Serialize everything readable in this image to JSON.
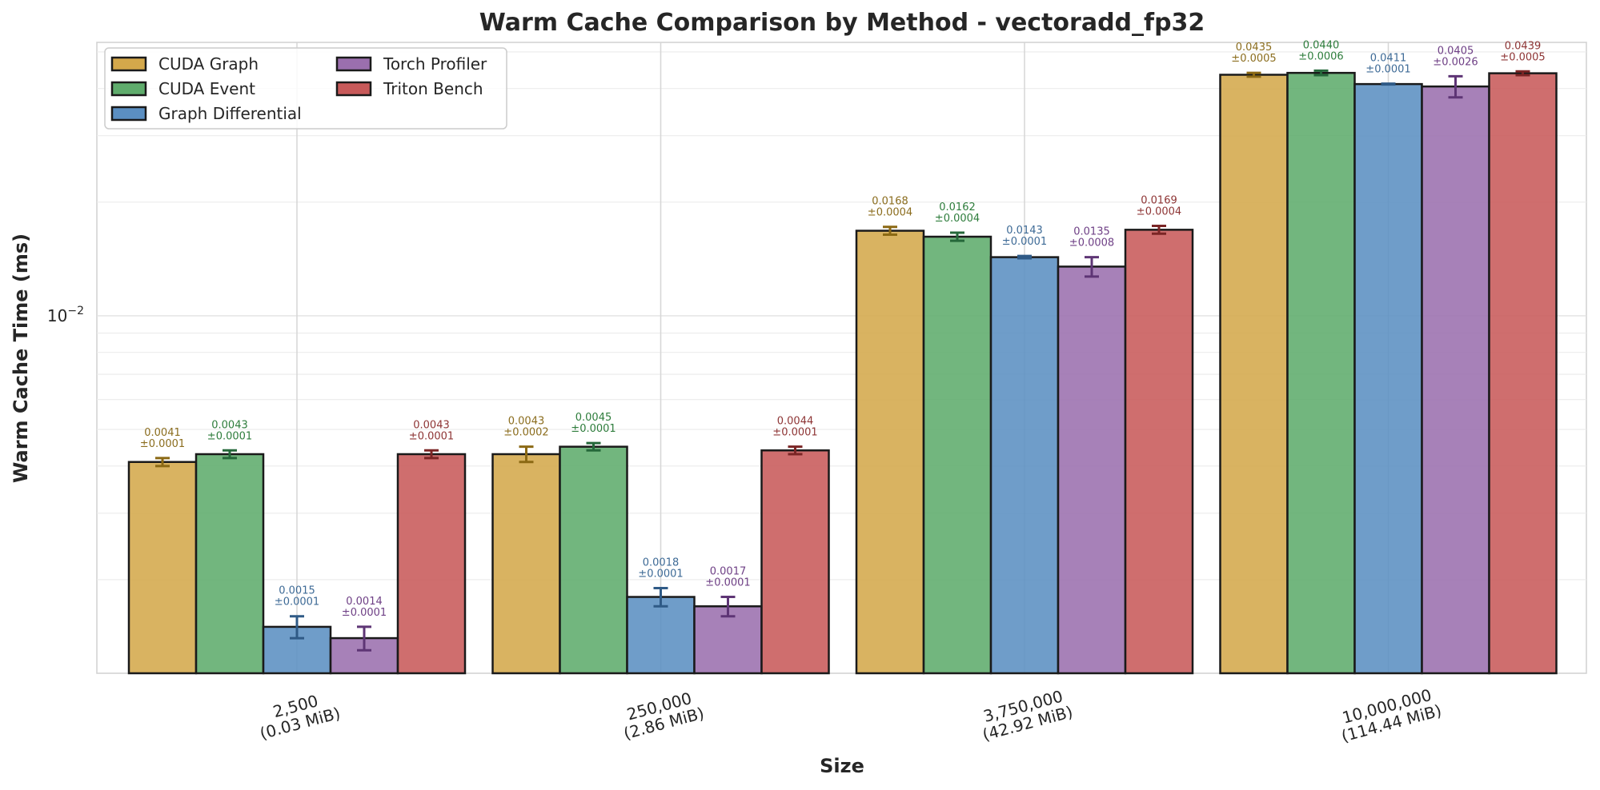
{
  "chart_data": {
    "type": "bar",
    "title": "Warm Cache Comparison by Method - vectoradd_fp32",
    "xlabel": "Size",
    "ylabel": "Warm Cache Time (ms)",
    "yscale": "log",
    "ylim": [
      0.00113,
      0.053
    ],
    "y_major_ticks": [
      {
        "value": 0.01,
        "label_base": "10",
        "label_exp": "−2"
      }
    ],
    "y_minor_gridlines": [
      0.002,
      0.003,
      0.004,
      0.005,
      0.006,
      0.007,
      0.008,
      0.009,
      0.02,
      0.03,
      0.04,
      0.05
    ],
    "grid": true,
    "legend_position": "top-left",
    "categories": [
      {
        "line1": "2,500",
        "line2": "(0.03 MiB)"
      },
      {
        "line1": "250,000",
        "line2": "(2.86 MiB)"
      },
      {
        "line1": "3,750,000",
        "line2": "(42.92 MiB)"
      },
      {
        "line1": "10,000,000",
        "line2": "(114.44 MiB)"
      }
    ],
    "series": [
      {
        "name": "CUDA Graph",
        "color": "#d4a84b",
        "label_color": "#8b6d1e",
        "err_color": "#8b6914",
        "values": [
          0.0041,
          0.0043,
          0.0168,
          0.0435
        ],
        "errors": [
          0.0001,
          0.0002,
          0.0004,
          0.0005
        ],
        "value_labels": [
          "0.0041",
          "0.0043",
          "0.0168",
          "0.0435"
        ],
        "error_labels": [
          "±0.0001",
          "±0.0002",
          "±0.0004",
          "±0.0005"
        ]
      },
      {
        "name": "CUDA Event",
        "color": "#5fac6c",
        "label_color": "#2e7d3c",
        "err_color": "#25683a",
        "values": [
          0.0043,
          0.0045,
          0.0162,
          0.044
        ],
        "errors": [
          0.0001,
          0.0001,
          0.0004,
          0.0006
        ],
        "value_labels": [
          "0.0043",
          "0.0045",
          "0.0162",
          "0.0440"
        ],
        "error_labels": [
          "±0.0001",
          "±0.0001",
          "±0.0004",
          "±0.0006"
        ]
      },
      {
        "name": "Graph Differential",
        "color": "#5b8fc2",
        "label_color": "#3d6a96",
        "err_color": "#2f5a86",
        "values": [
          0.0015,
          0.0018,
          0.0143,
          0.0411
        ],
        "errors": [
          0.0001,
          0.0001,
          0.0001,
          0.0001
        ],
        "value_labels": [
          "0.0015",
          "0.0018",
          "0.0143",
          "0.0411"
        ],
        "error_labels": [
          "±0.0001",
          "±0.0001",
          "±0.0001",
          "±0.0001"
        ]
      },
      {
        "name": "Torch Profiler",
        "color": "#9b6fae",
        "label_color": "#6e3f85",
        "err_color": "#5e3575",
        "values": [
          0.0014,
          0.0017,
          0.0135,
          0.0405
        ],
        "errors": [
          0.0001,
          0.0001,
          0.0008,
          0.0026
        ],
        "value_labels": [
          "0.0014",
          "0.0017",
          "0.0135",
          "0.0405"
        ],
        "error_labels": [
          "±0.0001",
          "±0.0001",
          "±0.0008",
          "±0.0026"
        ]
      },
      {
        "name": "Triton Bench",
        "color": "#c85a5a",
        "label_color": "#8e3535",
        "err_color": "#7a2525",
        "values": [
          0.0043,
          0.0044,
          0.0169,
          0.0439
        ],
        "errors": [
          0.0001,
          0.0001,
          0.0004,
          0.0005
        ],
        "value_labels": [
          "0.0043",
          "0.0044",
          "0.0169",
          "0.0439"
        ],
        "error_labels": [
          "±0.0001",
          "±0.0001",
          "±0.0004",
          "±0.0005"
        ]
      }
    ]
  }
}
